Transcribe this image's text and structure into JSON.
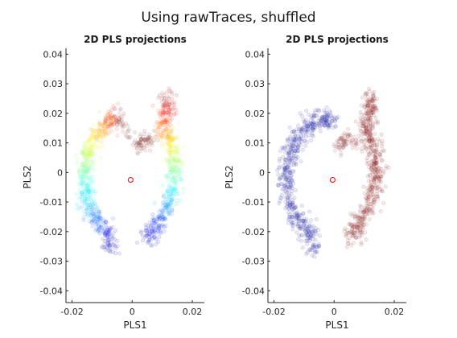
{
  "figure": {
    "suptitle": "Using rawTraces, shuffled"
  },
  "chart_data": [
    {
      "type": "scatter",
      "title": "2D PLS projections",
      "xlabel": "PLS1",
      "ylabel": "PLS2",
      "xlim": [
        -0.022,
        0.024
      ],
      "ylim": [
        -0.044,
        0.042
      ],
      "xticks": [
        -0.02,
        0,
        0.02
      ],
      "xtick_labels": [
        "-0.02",
        "0",
        "0.02"
      ],
      "yticks": [
        -0.04,
        -0.03,
        -0.02,
        -0.01,
        0,
        0.01,
        0.02,
        0.03,
        0.04
      ],
      "ytick_labels": [
        "-0.04",
        "-0.03",
        "-0.02",
        "-0.01",
        "0",
        "0.01",
        "0.02",
        "0.03",
        "0.04"
      ],
      "grid": false,
      "colormap": "jet",
      "point_alpha": 0.1,
      "marker_color": "#ff0000",
      "marker_point": [
        -0.0005,
        -0.0025
      ],
      "clusters": [
        {
          "color_mode": "jet",
          "curve": [
            [
              -0.0055,
              0.019
            ],
            [
              -0.008,
              0.0165
            ],
            [
              -0.0105,
              0.0145
            ],
            [
              -0.0125,
              0.0115
            ],
            [
              -0.0145,
              0.0075
            ],
            [
              -0.0155,
              0.003
            ],
            [
              -0.0158,
              -0.002
            ],
            [
              -0.0155,
              -0.007
            ],
            [
              -0.0145,
              -0.0115
            ],
            [
              -0.012,
              -0.016
            ],
            [
              -0.01,
              -0.019
            ],
            [
              -0.0075,
              -0.022
            ],
            [
              -0.007,
              -0.026
            ]
          ],
          "jet_range": [
            0.85,
            0.02
          ],
          "spread": 0.0018,
          "n": 520
        },
        {
          "color_mode": "jet",
          "curve": [
            [
              0.0115,
              0.026
            ],
            [
              0.0125,
              0.022
            ],
            [
              0.0105,
              0.0185
            ],
            [
              0.01,
              0.0145
            ],
            [
              0.012,
              0.011
            ],
            [
              0.0135,
              0.007
            ],
            [
              0.014,
              0.003
            ],
            [
              0.0138,
              -0.002
            ],
            [
              0.013,
              -0.0065
            ],
            [
              0.012,
              -0.011
            ],
            [
              0.0095,
              -0.0155
            ],
            [
              0.0075,
              -0.0195
            ],
            [
              0.005,
              -0.0225
            ]
          ],
          "jet_range": [
            0.98,
            0.05
          ],
          "spread": 0.0018,
          "n": 520
        },
        {
          "color_mode": "solid",
          "color": "#8a2a2a",
          "curve": [
            [
              0.0015,
              0.0085
            ],
            [
              0.003,
              0.0105
            ],
            [
              0.005,
              0.012
            ],
            [
              0.0065,
              0.0095
            ]
          ],
          "spread": 0.0014,
          "n": 70
        },
        {
          "color_mode": "solid",
          "color": "#8a2a2a",
          "curve": [
            [
              -0.0055,
              0.0195
            ],
            [
              -0.003,
              0.016
            ],
            [
              -0.0005,
              0.0125
            ]
          ],
          "spread": 0.0012,
          "n": 40
        }
      ]
    },
    {
      "type": "scatter",
      "title": "2D PLS projections",
      "xlabel": "PLS1",
      "ylabel": "PLS2",
      "xlim": [
        -0.022,
        0.024
      ],
      "ylim": [
        -0.044,
        0.042
      ],
      "xticks": [
        -0.02,
        0,
        0.02
      ],
      "xtick_labels": [
        "-0.02",
        "0",
        "0.02"
      ],
      "yticks": [
        -0.04,
        -0.03,
        -0.02,
        -0.01,
        0,
        0.01,
        0.02,
        0.03,
        0.04
      ],
      "ytick_labels": [
        "-0.04",
        "-0.03",
        "-0.02",
        "-0.01",
        "0",
        "0.01",
        "0.02",
        "0.03",
        "0.04"
      ],
      "grid": false,
      "point_alpha": 0.1,
      "marker_color": "#ff0000",
      "marker_point": [
        -0.0005,
        -0.0025
      ],
      "clusters": [
        {
          "color_mode": "solid",
          "color": "#1a1aa0",
          "curve": [
            [
              -0.0005,
              0.017
            ],
            [
              -0.003,
              0.0185
            ],
            [
              -0.006,
              0.0175
            ],
            [
              -0.0095,
              0.015
            ],
            [
              -0.0125,
              0.0115
            ],
            [
              -0.0145,
              0.0075
            ],
            [
              -0.0155,
              0.003
            ],
            [
              -0.0158,
              -0.002
            ],
            [
              -0.0155,
              -0.007
            ],
            [
              -0.0145,
              -0.0115
            ],
            [
              -0.012,
              -0.016
            ],
            [
              -0.0095,
              -0.019
            ],
            [
              -0.0075,
              -0.022
            ],
            [
              -0.006,
              -0.026
            ]
          ],
          "spread": 0.0019,
          "n": 560
        },
        {
          "color_mode": "solid",
          "color": "#8a1a1a",
          "curve": [
            [
              0.0115,
              0.026
            ],
            [
              0.0125,
              0.022
            ],
            [
              0.011,
              0.0185
            ],
            [
              0.0105,
              0.0145
            ],
            [
              0.012,
              0.011
            ],
            [
              0.0135,
              0.007
            ],
            [
              0.014,
              0.003
            ],
            [
              0.0138,
              -0.002
            ],
            [
              0.0132,
              -0.0065
            ],
            [
              0.012,
              -0.011
            ],
            [
              0.0095,
              -0.0155
            ],
            [
              0.0075,
              -0.0195
            ],
            [
              0.0045,
              -0.0225
            ]
          ],
          "spread": 0.0019,
          "n": 540
        },
        {
          "color_mode": "solid",
          "color": "#8a2a2a",
          "curve": [
            [
              0.0015,
              0.0085
            ],
            [
              0.003,
              0.0105
            ],
            [
              0.005,
              0.012
            ],
            [
              0.0065,
              0.0095
            ]
          ],
          "spread": 0.0014,
          "n": 70
        }
      ]
    }
  ]
}
